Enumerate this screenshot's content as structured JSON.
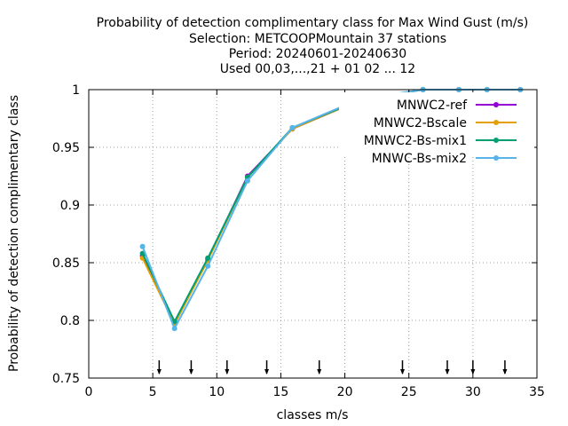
{
  "chart_data": {
    "type": "line",
    "title": [
      "Probability of detection complimentary class  for Max Wind Gust (m/s)",
      "Selection: METCOOPMountain     37 stations",
      "Period: 20240601-20240630",
      "Used 00,03,...,21 + 01 02 ... 12"
    ],
    "xlabel": "classes m/s",
    "ylabel": "Probability of detection complimentary class",
    "xlim": [
      0,
      35
    ],
    "ylim": [
      0.75,
      1
    ],
    "xticks": [
      0,
      5,
      10,
      15,
      20,
      25,
      30,
      35
    ],
    "yticks": [
      0.75,
      0.8,
      0.85,
      0.9,
      0.95,
      1
    ],
    "ytick_labels": [
      "0.75",
      "0.8",
      "0.85",
      "0.9",
      "0.95",
      "1"
    ],
    "grid": true,
    "legend_position": "top-right",
    "class_markers_x": [
      5.5,
      8,
      10.8,
      13.9,
      18,
      24.5,
      28,
      30,
      32.5
    ],
    "series": [
      {
        "name": "MNWC2-ref",
        "color": "#9400d3",
        "x": [
          4.2,
          6.7,
          9.3,
          12.4,
          15.9,
          21.2,
          26.1,
          28.9,
          31.1,
          33.7
        ],
        "values": [
          0.856,
          0.797,
          0.853,
          0.925,
          0.966,
          0.991,
          1.0,
          1.0,
          1.0,
          1.0
        ]
      },
      {
        "name": "MNWC2-Bscale",
        "color": "#e69f00",
        "x": [
          4.2,
          6.7,
          9.3,
          12.4,
          15.9,
          21.2,
          26.1,
          28.9,
          31.1,
          33.7
        ],
        "values": [
          0.854,
          0.797,
          0.852,
          0.924,
          0.966,
          0.991,
          1.0,
          1.0,
          1.0,
          1.0
        ]
      },
      {
        "name": "MNWC2-Bs-mix1",
        "color": "#009e73",
        "x": [
          4.2,
          6.7,
          9.3,
          12.4,
          15.9,
          21.2,
          26.1,
          28.9,
          31.1,
          33.7
        ],
        "values": [
          0.858,
          0.799,
          0.854,
          0.924,
          0.967,
          0.991,
          1.0,
          1.0,
          1.0,
          1.0
        ]
      },
      {
        "name": "MNWC-Bs-mix2",
        "color": "#56b4e9",
        "x": [
          4.2,
          6.7,
          9.3,
          12.4,
          15.9,
          21.2,
          26.1,
          28.9,
          31.1,
          33.7
        ],
        "values": [
          0.864,
          0.793,
          0.847,
          0.921,
          0.967,
          0.992,
          1.0,
          1.0,
          1.0,
          1.0
        ]
      }
    ]
  }
}
